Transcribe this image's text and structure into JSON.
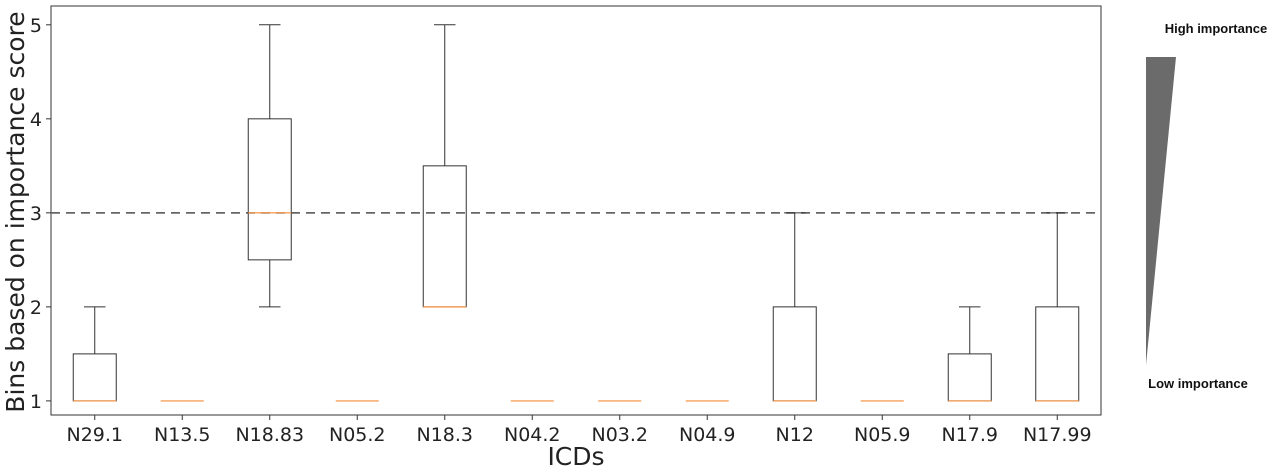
{
  "chart_data": {
    "type": "boxplot",
    "title": "",
    "xlabel": "ICDs",
    "ylabel": "Bins based on importance score",
    "ylim": [
      0.85,
      5.2
    ],
    "yticks": [
      1,
      2,
      3,
      4,
      5
    ],
    "reference_line": {
      "y": 3,
      "style": "dashed",
      "color": "#666666"
    },
    "grid": false,
    "colors": {
      "box": "#333333",
      "median": "#f5a05a",
      "wedge": "#6b6b6b"
    },
    "categories": [
      "N29.1",
      "N13.5",
      "N18.83",
      "N05.2",
      "N18.3",
      "N04.2",
      "N03.2",
      "N04.9",
      "N12",
      "N05.9",
      "N17.9",
      "N17.99"
    ],
    "boxes": [
      {
        "label": "N29.1",
        "whislo": 1,
        "q1": 1,
        "med": 1,
        "q3": 1.5,
        "whishi": 2
      },
      {
        "label": "N13.5",
        "whislo": 1,
        "q1": 1,
        "med": 1,
        "q3": 1,
        "whishi": 1
      },
      {
        "label": "N18.83",
        "whislo": 2,
        "q1": 2.5,
        "med": 3,
        "q3": 4,
        "whishi": 5
      },
      {
        "label": "N05.2",
        "whislo": 1,
        "q1": 1,
        "med": 1,
        "q3": 1,
        "whishi": 1
      },
      {
        "label": "N18.3",
        "whislo": 2,
        "q1": 2,
        "med": 2,
        "q3": 3.5,
        "whishi": 5
      },
      {
        "label": "N04.2",
        "whislo": 1,
        "q1": 1,
        "med": 1,
        "q3": 1,
        "whishi": 1
      },
      {
        "label": "N03.2",
        "whislo": 1,
        "q1": 1,
        "med": 1,
        "q3": 1,
        "whishi": 1
      },
      {
        "label": "N04.9",
        "whislo": 1,
        "q1": 1,
        "med": 1,
        "q3": 1,
        "whishi": 1
      },
      {
        "label": "N12",
        "whislo": 1,
        "q1": 1,
        "med": 1,
        "q3": 2,
        "whishi": 3
      },
      {
        "label": "N05.9",
        "whislo": 1,
        "q1": 1,
        "med": 1,
        "q3": 1,
        "whishi": 1
      },
      {
        "label": "N17.9",
        "whislo": 1,
        "q1": 1,
        "med": 1,
        "q3": 1.5,
        "whishi": 2
      },
      {
        "label": "N17.99",
        "whislo": 1,
        "q1": 1,
        "med": 1,
        "q3": 2,
        "whishi": 3
      }
    ]
  },
  "importance_scale": {
    "high_label": "High importance",
    "low_label": "Low importance"
  }
}
